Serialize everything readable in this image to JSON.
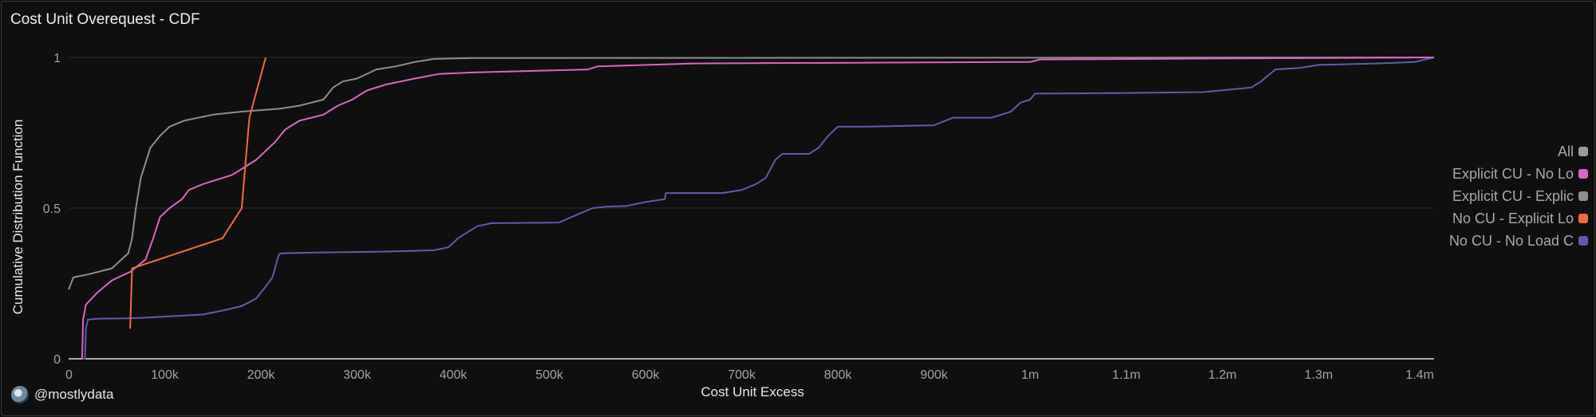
{
  "header": {
    "title": "Cost Unit Overequest - CDF"
  },
  "footer": {
    "handle": "@mostlydata",
    "avatar_icon": "globe-avatar-icon"
  },
  "legend": {
    "items": [
      {
        "label": "All",
        "color": "#9a9a9a"
      },
      {
        "label": "Explicit CU - No Lo",
        "color": "#d966c2"
      },
      {
        "label": "Explicit CU - Explic",
        "color": "#8e8e8e"
      },
      {
        "label": "No CU - Explicit Lo",
        "color": "#f26a45"
      },
      {
        "label": "No CU - No Load C",
        "color": "#5b5ea8"
      }
    ]
  },
  "chart_data": {
    "type": "line",
    "xlabel": "Cost Unit Excess",
    "ylabel": "Cumulative Distribution Function",
    "xlim": [
      0,
      1420000
    ],
    "ylim": [
      0,
      1
    ],
    "x_ticks": [
      {
        "v": 0,
        "label": "0"
      },
      {
        "v": 100000,
        "label": "100k"
      },
      {
        "v": 200000,
        "label": "200k"
      },
      {
        "v": 300000,
        "label": "300k"
      },
      {
        "v": 400000,
        "label": "400k"
      },
      {
        "v": 500000,
        "label": "500k"
      },
      {
        "v": 600000,
        "label": "600k"
      },
      {
        "v": 700000,
        "label": "700k"
      },
      {
        "v": 800000,
        "label": "800k"
      },
      {
        "v": 900000,
        "label": "900k"
      },
      {
        "v": 1000000,
        "label": "1m"
      },
      {
        "v": 1100000,
        "label": "1.1m"
      },
      {
        "v": 1200000,
        "label": "1.2m"
      },
      {
        "v": 1300000,
        "label": "1.3m"
      },
      {
        "v": 1420000,
        "label": "1.4m"
      }
    ],
    "y_ticks": [
      {
        "v": 0,
        "label": "0"
      },
      {
        "v": 0.5,
        "label": "0.5"
      },
      {
        "v": 1,
        "label": "1"
      }
    ],
    "grid": true,
    "legend_position": "right",
    "series": [
      {
        "name": "No CU - No Load C",
        "color": "#5b5ea8",
        "points": [
          [
            14000,
            0
          ],
          [
            17000,
            0
          ],
          [
            18000,
            0.1
          ],
          [
            20000,
            0.13
          ],
          [
            30000,
            0.133
          ],
          [
            60000,
            0.134
          ],
          [
            75000,
            0.136
          ],
          [
            100000,
            0.14
          ],
          [
            140000,
            0.147
          ],
          [
            160000,
            0.16
          ],
          [
            180000,
            0.175
          ],
          [
            195000,
            0.2
          ],
          [
            205000,
            0.24
          ],
          [
            212000,
            0.27
          ],
          [
            218000,
            0.34
          ],
          [
            220000,
            0.35
          ],
          [
            250000,
            0.352
          ],
          [
            320000,
            0.355
          ],
          [
            380000,
            0.36
          ],
          [
            395000,
            0.37
          ],
          [
            405000,
            0.4
          ],
          [
            415000,
            0.42
          ],
          [
            425000,
            0.44
          ],
          [
            440000,
            0.45
          ],
          [
            510000,
            0.452
          ],
          [
            530000,
            0.48
          ],
          [
            545000,
            0.5
          ],
          [
            560000,
            0.505
          ],
          [
            580000,
            0.507
          ],
          [
            600000,
            0.52
          ],
          [
            620000,
            0.53
          ],
          [
            621000,
            0.55
          ],
          [
            680000,
            0.55
          ],
          [
            700000,
            0.56
          ],
          [
            715000,
            0.58
          ],
          [
            725000,
            0.6
          ],
          [
            735000,
            0.66
          ],
          [
            742000,
            0.68
          ],
          [
            770000,
            0.68
          ],
          [
            780000,
            0.7
          ],
          [
            790000,
            0.74
          ],
          [
            800000,
            0.77
          ],
          [
            830000,
            0.77
          ],
          [
            900000,
            0.775
          ],
          [
            920000,
            0.8
          ],
          [
            960000,
            0.8
          ],
          [
            980000,
            0.82
          ],
          [
            990000,
            0.85
          ],
          [
            1000000,
            0.86
          ],
          [
            1005000,
            0.88
          ],
          [
            1100000,
            0.882
          ],
          [
            1180000,
            0.885
          ],
          [
            1230000,
            0.9
          ],
          [
            1240000,
            0.92
          ],
          [
            1255000,
            0.96
          ],
          [
            1280000,
            0.965
          ],
          [
            1300000,
            0.975
          ],
          [
            1360000,
            0.98
          ],
          [
            1400000,
            0.985
          ],
          [
            1420000,
            1
          ]
        ]
      },
      {
        "name": "Explicit CU - Explic",
        "color": "#8e8e8e",
        "points": [
          [
            0,
            0.23
          ],
          [
            5000,
            0.27
          ],
          [
            20000,
            0.28
          ],
          [
            45000,
            0.3
          ],
          [
            55000,
            0.33
          ],
          [
            62000,
            0.35
          ],
          [
            66000,
            0.4
          ],
          [
            70000,
            0.5
          ],
          [
            75000,
            0.6
          ],
          [
            85000,
            0.7
          ],
          [
            95000,
            0.74
          ],
          [
            105000,
            0.77
          ],
          [
            120000,
            0.79
          ],
          [
            150000,
            0.81
          ],
          [
            180000,
            0.82
          ],
          [
            220000,
            0.83
          ],
          [
            240000,
            0.84
          ],
          [
            265000,
            0.86
          ],
          [
            275000,
            0.9
          ],
          [
            285000,
            0.92
          ],
          [
            300000,
            0.93
          ],
          [
            320000,
            0.96
          ],
          [
            340000,
            0.97
          ],
          [
            360000,
            0.985
          ],
          [
            380000,
            0.995
          ],
          [
            420000,
            0.998
          ],
          [
            1420000,
            1
          ]
        ]
      },
      {
        "name": "Explicit CU - No Lo",
        "color": "#d966c2",
        "points": [
          [
            14000,
            0
          ],
          [
            15000,
            0.13
          ],
          [
            18000,
            0.18
          ],
          [
            30000,
            0.22
          ],
          [
            45000,
            0.26
          ],
          [
            65000,
            0.29
          ],
          [
            80000,
            0.33
          ],
          [
            88000,
            0.4
          ],
          [
            95000,
            0.47
          ],
          [
            105000,
            0.5
          ],
          [
            118000,
            0.53
          ],
          [
            125000,
            0.56
          ],
          [
            140000,
            0.58
          ],
          [
            160000,
            0.6
          ],
          [
            170000,
            0.61
          ],
          [
            180000,
            0.63
          ],
          [
            195000,
            0.66
          ],
          [
            205000,
            0.69
          ],
          [
            215000,
            0.72
          ],
          [
            225000,
            0.76
          ],
          [
            240000,
            0.79
          ],
          [
            265000,
            0.81
          ],
          [
            280000,
            0.84
          ],
          [
            295000,
            0.86
          ],
          [
            310000,
            0.89
          ],
          [
            330000,
            0.91
          ],
          [
            360000,
            0.93
          ],
          [
            385000,
            0.945
          ],
          [
            420000,
            0.95
          ],
          [
            540000,
            0.96
          ],
          [
            550000,
            0.97
          ],
          [
            650000,
            0.98
          ],
          [
            1000000,
            0.985
          ],
          [
            1010000,
            0.993
          ],
          [
            1420000,
            1
          ]
        ]
      },
      {
        "name": "No CU - Explicit Lo",
        "color": "#f26a45",
        "points": [
          [
            64000,
            0.1
          ],
          [
            66000,
            0.3
          ],
          [
            160000,
            0.4
          ],
          [
            180000,
            0.5
          ],
          [
            188000,
            0.8
          ],
          [
            205000,
            1
          ]
        ]
      },
      {
        "name": "All",
        "color": "#9a9a9a",
        "points": [
          [
            1420000,
            1
          ]
        ]
      }
    ]
  }
}
